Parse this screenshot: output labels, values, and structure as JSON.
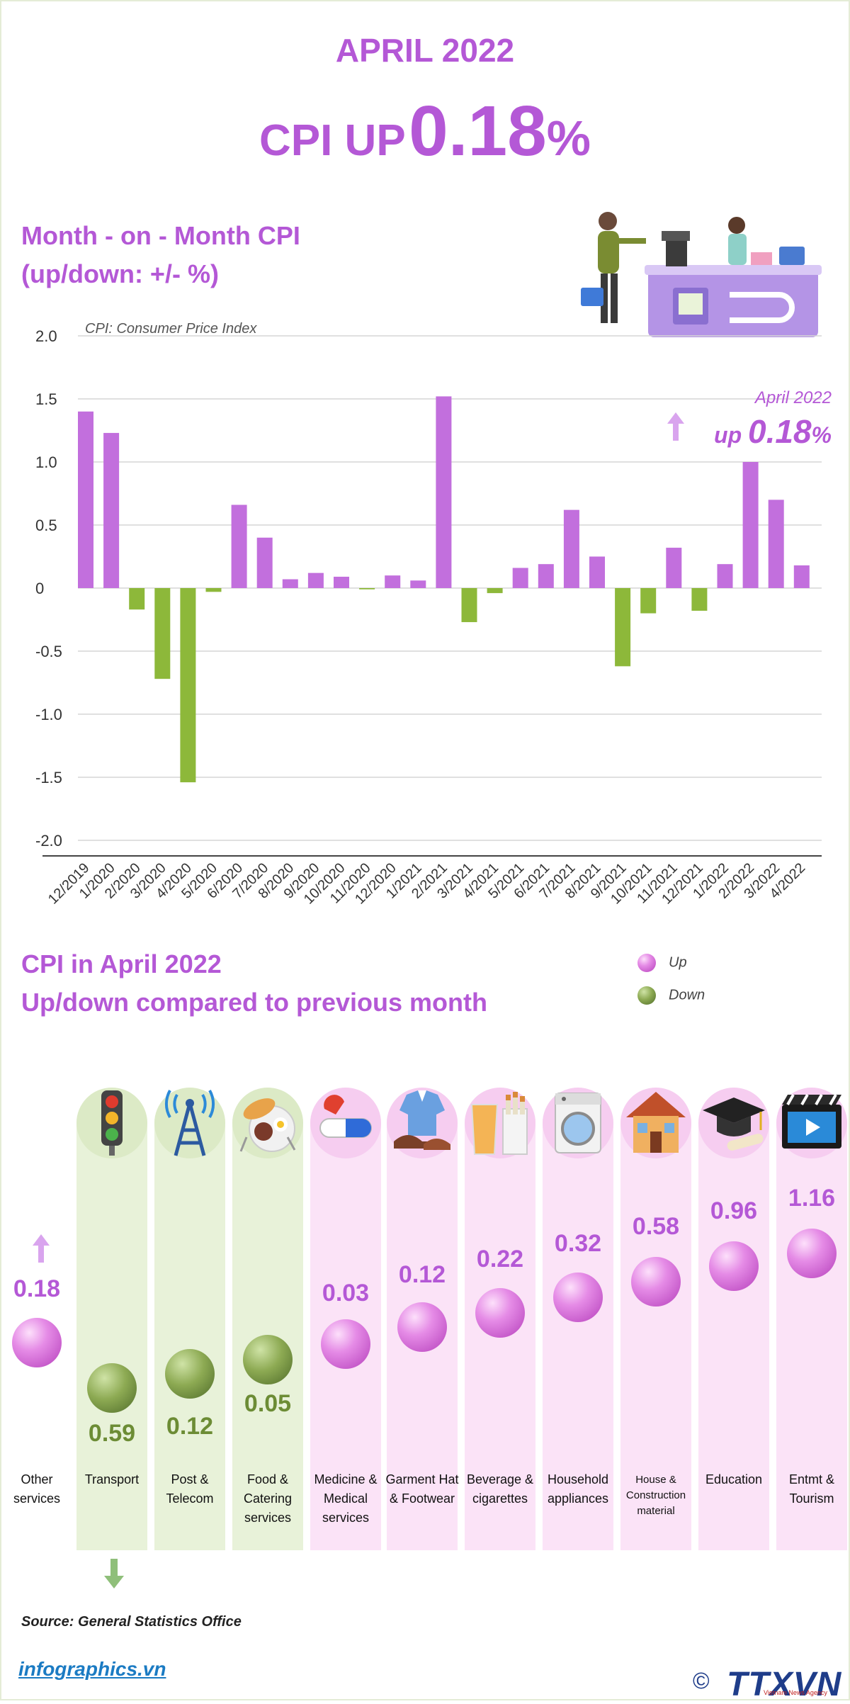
{
  "header": {
    "month": "APRIL 2022",
    "cpi_prefix": "CPI UP",
    "cpi_value": "0.18",
    "cpi_unit": "%"
  },
  "chart_section": {
    "title_line1": "Month - on - Month CPI",
    "title_line2": "(up/down: +/- %)",
    "note": "CPI: Consumer Price Index",
    "highlight_label": "April 2022",
    "highlight_prefix": "up",
    "highlight_value": "0.18",
    "highlight_unit": "%"
  },
  "chart_data": {
    "type": "bar",
    "title": "Month - on - Month CPI",
    "ylim": [
      -2.0,
      2.0
    ],
    "yticks": [
      "2.0",
      "1.5",
      "1.0",
      "0.5",
      "0",
      "-0.5",
      "-1.0",
      "-1.5",
      "-2.0"
    ],
    "ytick_values": [
      2.0,
      1.5,
      1.0,
      0.5,
      0,
      -0.5,
      -1.0,
      -1.5,
      -2.0
    ],
    "grid": true,
    "categories": [
      "12/2019",
      "1/2020",
      "2/2020",
      "3/2020",
      "4/2020",
      "5/2020",
      "6/2020",
      "7/2020",
      "8/2020",
      "9/2020",
      "10/2020",
      "11/2020",
      "12/2020",
      "1/2021",
      "2/2021",
      "3/2021",
      "4/2021",
      "5/2021",
      "6/2021",
      "7/2021",
      "8/2021",
      "9/2021",
      "10/2021",
      "11/2021",
      "12/2021",
      "1/2022",
      "2/2022",
      "3/2022",
      "4/2022"
    ],
    "values": [
      1.4,
      1.23,
      -0.17,
      -0.72,
      -1.54,
      -0.03,
      0.66,
      0.4,
      0.07,
      0.12,
      0.09,
      -0.01,
      0.1,
      0.06,
      1.52,
      -0.27,
      -0.04,
      0.16,
      0.19,
      0.62,
      0.25,
      -0.62,
      -0.2,
      0.32,
      -0.18,
      0.19,
      1.0,
      0.7,
      0.18
    ],
    "colors": {
      "up": "#c26fdd",
      "down": "#8db83a"
    }
  },
  "group_section": {
    "title_line1": "CPI in April 2022",
    "title_line2": "Up/down compared to previous month",
    "legend": [
      {
        "label": "Up",
        "color": "#d57be0"
      },
      {
        "label": "Down",
        "color": "#86a84c"
      }
    ],
    "items": [
      {
        "label": "Other services",
        "value": "0.18",
        "dir": "up",
        "icon": "up-arrow-icon"
      },
      {
        "label": "Transport",
        "value": "0.59",
        "dir": "down",
        "icon": "traffic-light-icon"
      },
      {
        "label": "Post & Telecom",
        "value": "0.12",
        "dir": "down",
        "icon": "radio-tower-icon"
      },
      {
        "label": "Food & Catering services",
        "value": "0.05",
        "dir": "down",
        "icon": "food-plate-icon"
      },
      {
        "label": "Medicine & Medical services",
        "value": "0.03",
        "dir": "up",
        "icon": "pill-capsule-icon"
      },
      {
        "label": "Garment Hat & Footwear",
        "value": "0.12",
        "dir": "up",
        "icon": "shirt-shoes-icon"
      },
      {
        "label": "Beverage & cigarettes",
        "value": "0.22",
        "dir": "up",
        "icon": "drink-cigarettes-icon"
      },
      {
        "label": "Household appliances",
        "value": "0.32",
        "dir": "up",
        "icon": "washing-machine-icon"
      },
      {
        "label": "House & Construction material",
        "value": "0.58",
        "dir": "up",
        "icon": "house-icon"
      },
      {
        "label": "Education",
        "value": "0.96",
        "dir": "up",
        "icon": "graduation-cap-icon"
      },
      {
        "label": "Entmt & Tourism",
        "value": "1.16",
        "dir": "up",
        "icon": "video-player-icon"
      }
    ]
  },
  "footer": {
    "source": "Source: General Statistics Office",
    "site": "infographics.vn",
    "logo_mark": "©",
    "logo_text": "TTXVN",
    "logo_sub": "Vietnam News Agency"
  }
}
